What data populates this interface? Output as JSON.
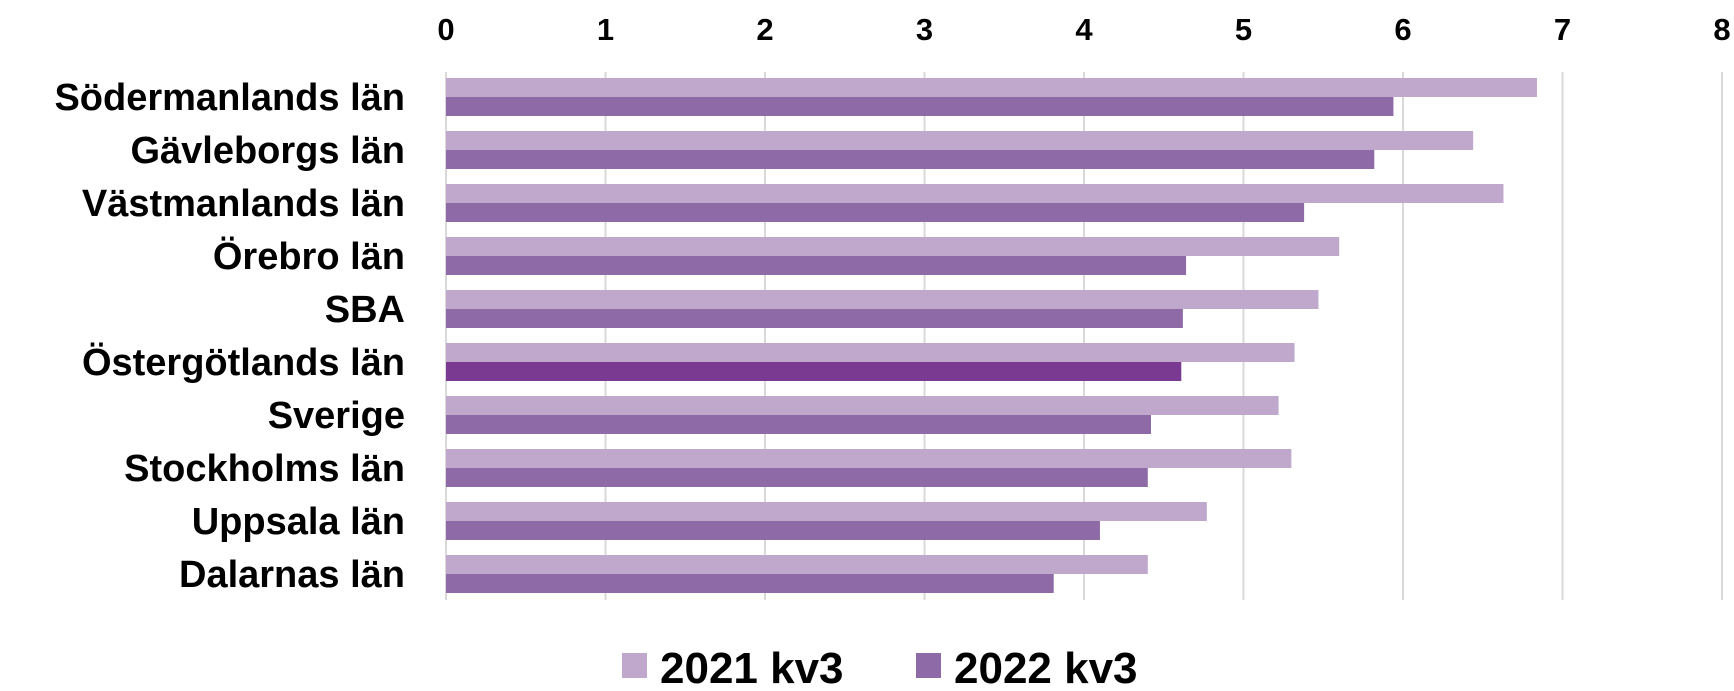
{
  "chart_data": {
    "type": "bar",
    "orientation": "horizontal",
    "categories": [
      "Södermanlands län",
      "Gävleborgs län",
      "Västmanlands län",
      "Örebro län",
      "SBA",
      "Östergötlands län",
      "Sverige",
      "Stockholms län",
      "Uppsala län",
      "Dalarnas län"
    ],
    "series": [
      {
        "name": "2021 kv3",
        "color": "#c0a8cc",
        "values": [
          6.84,
          6.44,
          6.63,
          5.6,
          5.47,
          5.32,
          5.22,
          5.3,
          4.77,
          4.4
        ]
      },
      {
        "name": "2022 kv3",
        "color": "#8e6aa7",
        "values": [
          5.94,
          5.82,
          5.38,
          4.64,
          4.62,
          4.61,
          4.42,
          4.4,
          4.1,
          3.81
        ]
      }
    ],
    "highlight": {
      "category": "Östergötlands län",
      "series": "2022 kv3",
      "color": "#7b3a92"
    },
    "x_ticks": [
      "0",
      "1",
      "2",
      "3",
      "4",
      "5",
      "6",
      "7",
      "8"
    ],
    "xlim": [
      0,
      8
    ],
    "x_axis_position": "top",
    "grid": true,
    "legend_position": "bottom",
    "title": "",
    "xlabel": "",
    "ylabel": ""
  }
}
